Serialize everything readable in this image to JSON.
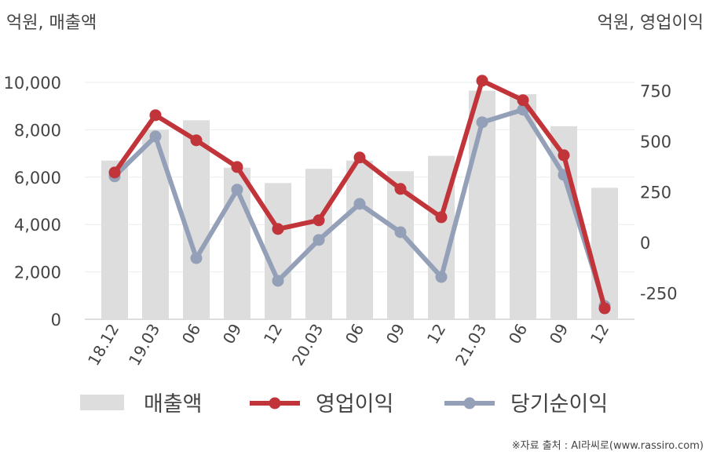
{
  "chart_data": {
    "type": "bar+line",
    "left_axis_unit": "억원, 매출액",
    "right_axis_unit": "억원, 영업이익",
    "categories": [
      "18.12",
      "19.03",
      "06",
      "09",
      "12",
      "20.03",
      "06",
      "09",
      "12",
      "21.03",
      "06",
      "09",
      "12"
    ],
    "left_ticks": [
      "0",
      "2,000",
      "4,000",
      "6,000",
      "8,000",
      "10,000"
    ],
    "right_ticks": [
      "-250",
      "0",
      "250",
      "500",
      "750"
    ],
    "ylim_left": [
      0,
      10000
    ],
    "ylim_right": [
      -380,
      790
    ],
    "grid": true,
    "legend_position": "bottom",
    "series": [
      {
        "name": "매출액",
        "type": "bar",
        "axis": "left",
        "color": "#dddddd",
        "values": [
          6700,
          8000,
          8400,
          6400,
          5750,
          6350,
          6700,
          6250,
          6900,
          9650,
          9500,
          8150,
          5550
        ]
      },
      {
        "name": "영업이익",
        "type": "line",
        "axis": "right",
        "color": "#c0343a",
        "values": [
          345,
          628,
          504,
          372,
          66,
          109,
          419,
          264,
          124,
          798,
          702,
          430,
          -326
        ]
      },
      {
        "name": "당기순이익",
        "type": "line",
        "axis": "right",
        "color": "#93a0b8",
        "values": [
          326,
          523,
          -78,
          260,
          -190,
          12,
          190,
          50,
          -171,
          593,
          655,
          333,
          -314
        ]
      }
    ],
    "source": "※자료 출처 : AI라씨로(www.rassiro.com)"
  }
}
